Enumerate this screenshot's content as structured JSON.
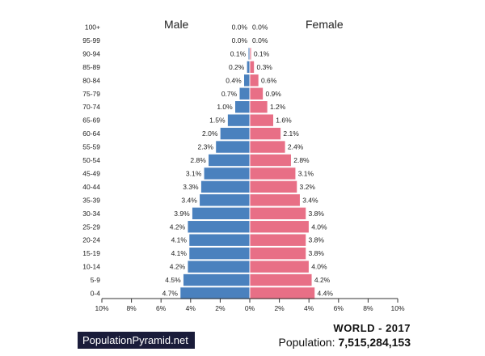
{
  "headings": {
    "male": "Male",
    "female": "Female"
  },
  "footer": {
    "brand": "PopulationPyramid.net",
    "region_title": "WORLD - 2017",
    "population_label": "Population:",
    "population_value": "7,515,284,153"
  },
  "colors": {
    "male": "#4a81be",
    "female": "#e86f86",
    "badge_bg": "#1a1c3a"
  },
  "chart_data": {
    "type": "bar",
    "orientation": "horizontal-pyramid",
    "categories": [
      "100+",
      "95-99",
      "90-94",
      "85-89",
      "80-84",
      "75-79",
      "70-74",
      "65-69",
      "60-64",
      "55-59",
      "50-54",
      "45-49",
      "40-44",
      "35-39",
      "30-34",
      "25-29",
      "20-24",
      "15-19",
      "10-14",
      "5-9",
      "0-4"
    ],
    "series": [
      {
        "name": "Male",
        "values": [
          0.0,
          0.0,
          0.1,
          0.2,
          0.4,
          0.7,
          1.0,
          1.5,
          2.0,
          2.3,
          2.8,
          3.1,
          3.3,
          3.4,
          3.9,
          4.2,
          4.1,
          4.1,
          4.2,
          4.5,
          4.7
        ]
      },
      {
        "name": "Female",
        "values": [
          0.0,
          0.0,
          0.1,
          0.3,
          0.6,
          0.9,
          1.2,
          1.6,
          2.1,
          2.4,
          2.8,
          3.1,
          3.2,
          3.4,
          3.8,
          4.0,
          3.8,
          3.8,
          4.0,
          4.2,
          4.4
        ]
      }
    ],
    "value_labels": {
      "male": [
        "0.0%",
        "0.0%",
        "0.1%",
        "0.2%",
        "0.4%",
        "0.7%",
        "1.0%",
        "1.5%",
        "2.0%",
        "2.3%",
        "2.8%",
        "3.1%",
        "3.3%",
        "3.4%",
        "3.9%",
        "4.2%",
        "4.1%",
        "4.1%",
        "4.2%",
        "4.5%",
        "4.7%"
      ],
      "female": [
        "0.0%",
        "0.0%",
        "0.1%",
        "0.3%",
        "0.6%",
        "0.9%",
        "1.2%",
        "1.6%",
        "2.1%",
        "2.4%",
        "2.8%",
        "3.1%",
        "3.2%",
        "3.4%",
        "3.8%",
        "4.0%",
        "3.8%",
        "3.8%",
        "4.0%",
        "4.2%",
        "4.4%"
      ]
    },
    "xlim": [
      -10,
      10
    ],
    "x_ticks": [
      -10,
      -8,
      -6,
      -4,
      -2,
      0,
      2,
      4,
      6,
      8,
      10
    ],
    "x_tick_labels": [
      "10%",
      "8%",
      "6%",
      "4%",
      "2%",
      "0%",
      "2%",
      "4%",
      "6%",
      "8%",
      "10%"
    ],
    "grid": false
  }
}
